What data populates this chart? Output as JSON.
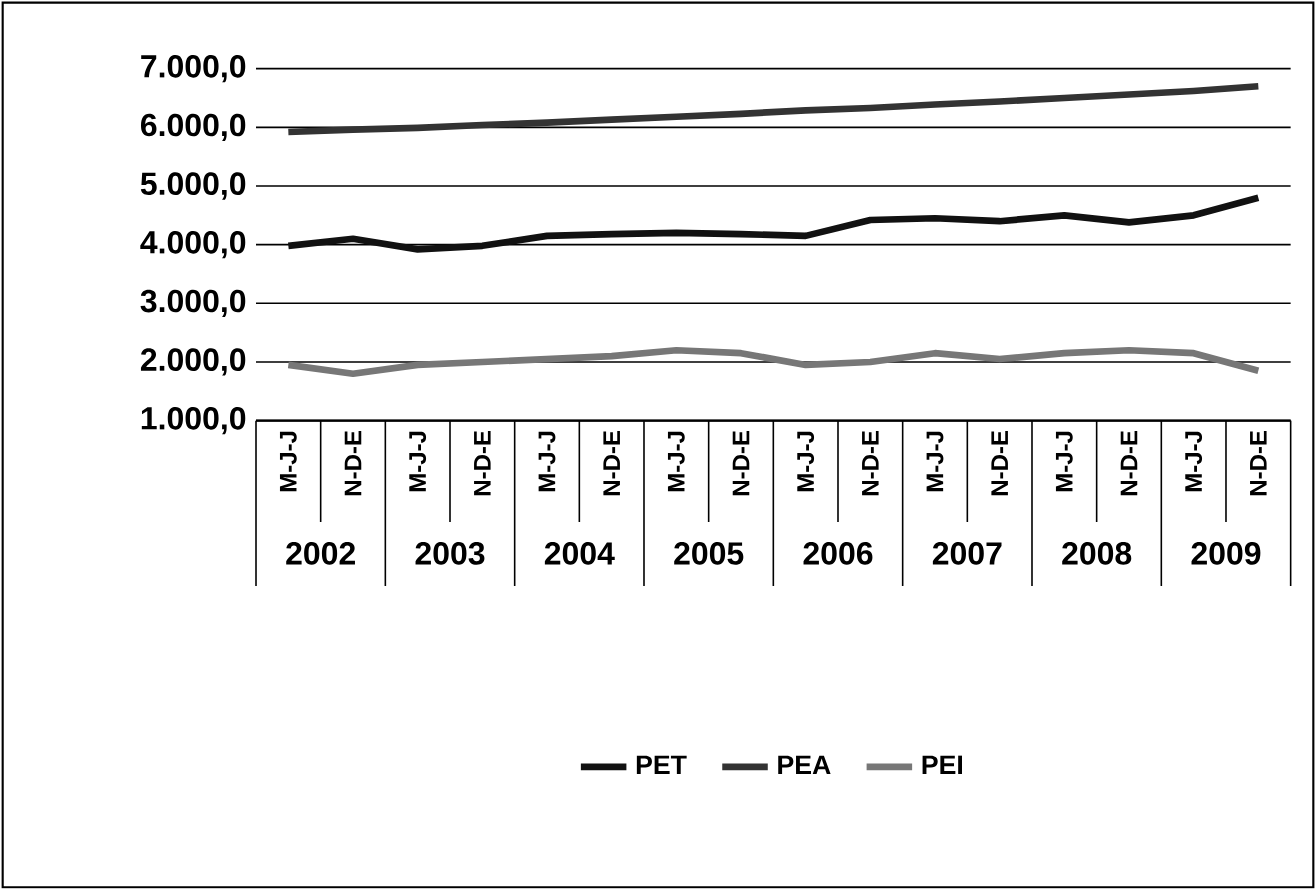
{
  "chart_data": {
    "type": "line",
    "categories": [
      "M-J-J",
      "N-D-E",
      "M-J-J",
      "N-D-E",
      "M-J-J",
      "N-D-E",
      "M-J-J",
      "N-D-E",
      "M-J-J",
      "N-D-E",
      "M-J-J",
      "N-D-E",
      "M-J-J",
      "N-D-E",
      "M-J-J",
      "N-D-E"
    ],
    "series": [
      {
        "name": "PET",
        "color": "#111111",
        "values": [
          3980,
          4100,
          3920,
          3980,
          4150,
          4180,
          4200,
          4180,
          4150,
          4420,
          4450,
          4400,
          4500,
          4380,
          4500,
          4800
        ]
      },
      {
        "name": "PEA",
        "color": "#333333",
        "values": [
          5920,
          5960,
          5990,
          6040,
          6080,
          6130,
          6180,
          6230,
          6290,
          6330,
          6390,
          6440,
          6500,
          6560,
          6620,
          6700
        ]
      },
      {
        "name": "PEI",
        "color": "#777777",
        "values": [
          1950,
          1800,
          1950,
          2000,
          2050,
          2100,
          2200,
          2150,
          1950,
          2000,
          2150,
          2050,
          2150,
          2200,
          2150,
          1850
        ]
      }
    ],
    "ylim": [
      1000,
      7000
    ],
    "yticks": [
      {
        "value": 1000,
        "label": "1.000,0"
      },
      {
        "value": 2000,
        "label": "2.000,0"
      },
      {
        "value": 3000,
        "label": "3.000,0"
      },
      {
        "value": 4000,
        "label": "4.000,0"
      },
      {
        "value": 5000,
        "label": "5.000,0"
      },
      {
        "value": 6000,
        "label": "6.000,0"
      },
      {
        "value": 7000,
        "label": "7.000,0"
      }
    ],
    "annotations": [
      "2002",
      "2003",
      "2004",
      "2005",
      "2006",
      "2007",
      "2008",
      "2009"
    ],
    "grid": "y",
    "legend": "bottom",
    "marker": "none",
    "line_style": "solid"
  }
}
